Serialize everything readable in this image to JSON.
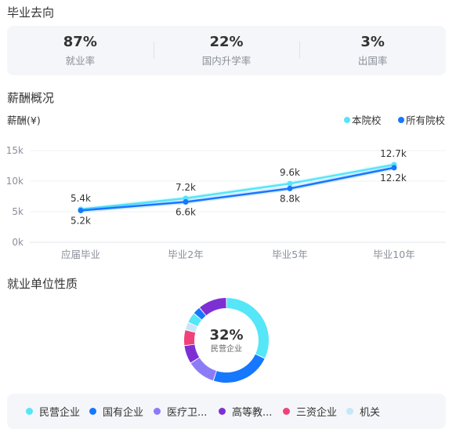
{
  "sections": {
    "destination_title": "毕业去向",
    "salary_title": "薪酬概况",
    "employer_title": "就业单位性质"
  },
  "stats": [
    {
      "value": "87%",
      "label": "就业率"
    },
    {
      "value": "22%",
      "label": "国内升学率"
    },
    {
      "value": "3%",
      "label": "出国率"
    }
  ],
  "chart_data": [
    {
      "type": "line",
      "ylabel": "薪酬(¥)",
      "categories": [
        "应届毕业",
        "毕业2年",
        "毕业5年",
        "毕业10年"
      ],
      "ylim": [
        0,
        15000
      ],
      "yticks": [
        "0k",
        "5k",
        "10k",
        "15k"
      ],
      "grid": true,
      "legend": "top-right",
      "series": [
        {
          "name": "本院校",
          "color": "#55e6f7",
          "values": [
            5400,
            7200,
            9600,
            12700
          ],
          "labels": [
            "5.4k",
            "7.2k",
            "9.6k",
            "12.7k"
          ]
        },
        {
          "name": "所有院校",
          "color": "#1677ff",
          "values": [
            5200,
            6600,
            8800,
            12200
          ],
          "labels": [
            "5.2k",
            "6.6k",
            "8.8k",
            "12.2k"
          ]
        }
      ]
    },
    {
      "type": "pie",
      "center_value": "32%",
      "center_label": "民营企业",
      "slices": [
        {
          "label": "民营企业",
          "value": 32,
          "color": "#55e6f7"
        },
        {
          "label": "国有企业",
          "value": 23,
          "color": "#1677ff"
        },
        {
          "label": "医疗卫...",
          "value": 11,
          "color": "#8b7cf6"
        },
        {
          "label": "高等教...",
          "value": 7,
          "color": "#7e2fd4"
        },
        {
          "label": "三资企业",
          "value": 6,
          "color": "#f0427a"
        },
        {
          "label": "机关",
          "value": 3,
          "color": "#c8e6fb"
        },
        {
          "label": "",
          "value": 4,
          "color": "#55e6f7"
        },
        {
          "label": "",
          "value": 3,
          "color": "#1677ff"
        },
        {
          "label": "",
          "value": 11,
          "color": "#7e2fd4"
        }
      ]
    }
  ]
}
